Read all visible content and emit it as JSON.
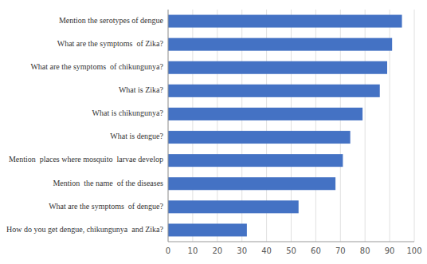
{
  "chart_data": {
    "type": "bar",
    "orientation": "horizontal",
    "categories": [
      "How do you get dengue, chikungunya  and Zika?",
      "What are the symptoms  of dengue?",
      "Mention  the name  of the diseases",
      "Mention  places where mosquito  larvae develop",
      "What is dengue?",
      "What is chikungunya?",
      "What is Zika?",
      "What are the symptoms  of chikungunya?",
      "What are the symptoms  of Zika?",
      "Mention the serotypes of dengue"
    ],
    "values": [
      32,
      53,
      68,
      71,
      74,
      79,
      86,
      89,
      91,
      95
    ],
    "color": "#4472C4",
    "xlim": [
      0,
      100
    ],
    "xticks": [
      0,
      10,
      20,
      30,
      40,
      50,
      60,
      70,
      80,
      90,
      100
    ],
    "grid": true
  }
}
